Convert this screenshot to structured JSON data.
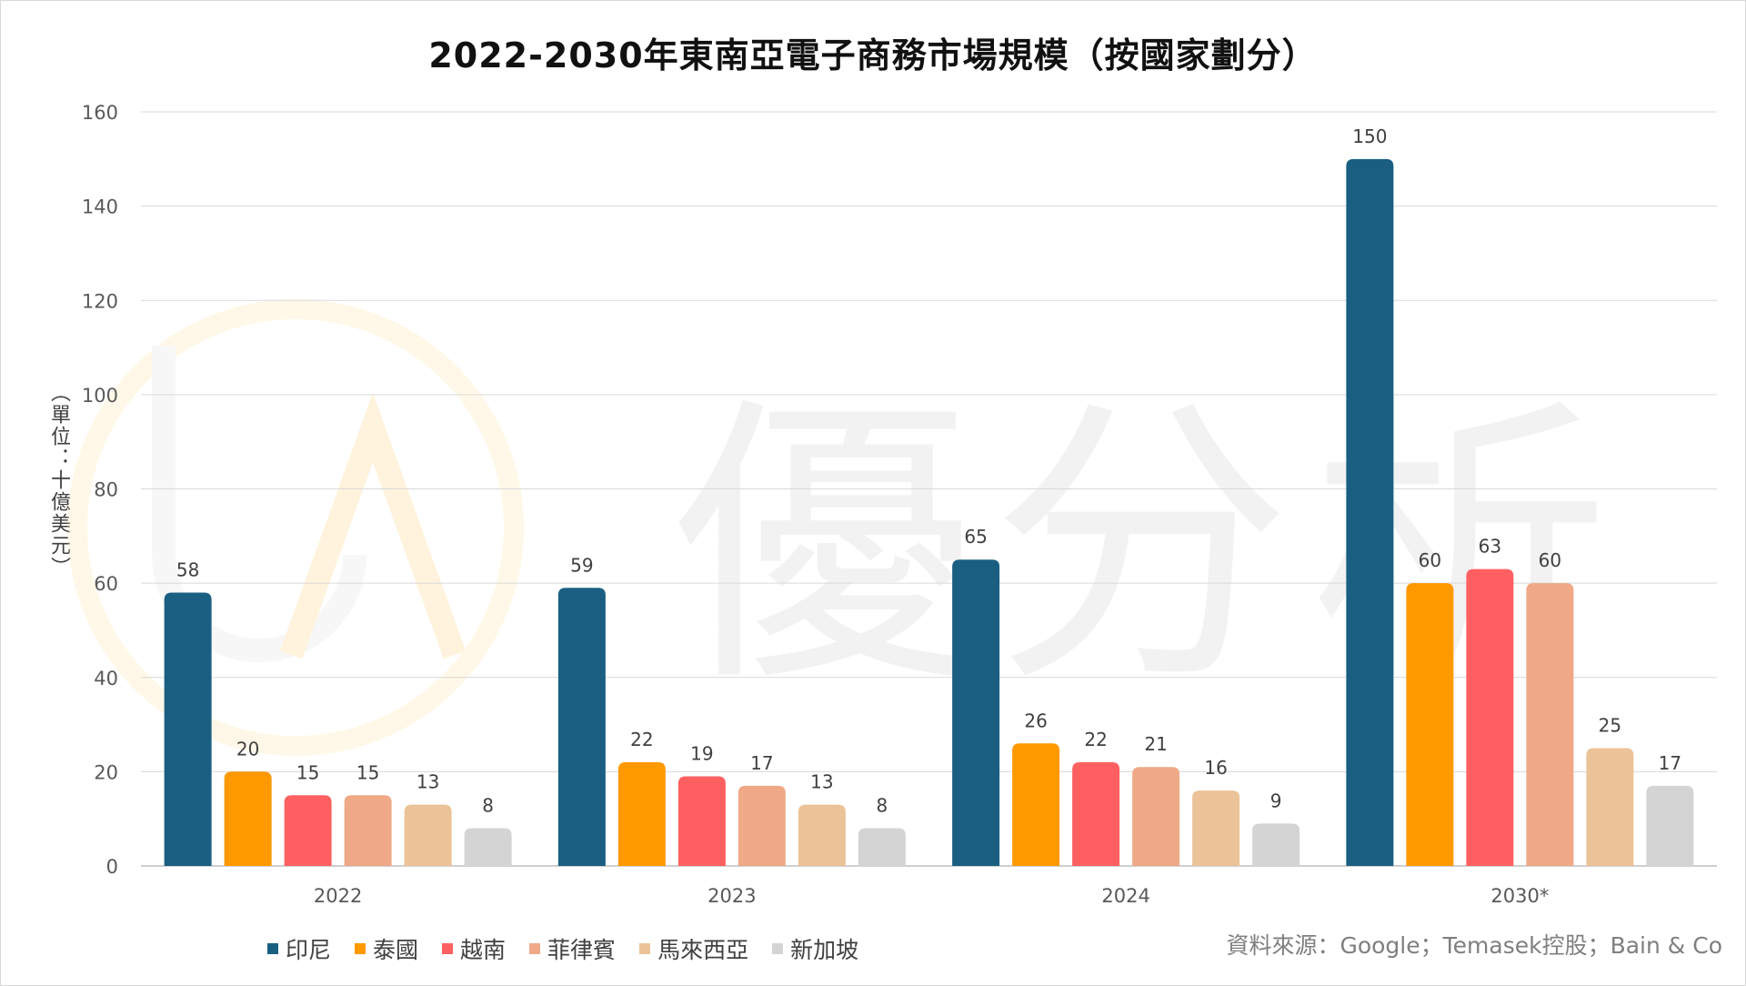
{
  "chart_data": {
    "type": "bar",
    "title": "2022-2030年東南亞電子商務市場規模（按國家劃分）",
    "ylabel": "（單位：十億美元）",
    "xlabel": "",
    "ylim": [
      0,
      160
    ],
    "yticks": [
      0,
      20,
      40,
      60,
      80,
      100,
      120,
      140,
      160
    ],
    "grid": true,
    "legend_position": "bottom-left",
    "categories": [
      "2022",
      "2023",
      "2024",
      "2030*"
    ],
    "series": [
      {
        "name": "印尼",
        "color": "#1a5f82",
        "values": [
          58,
          59,
          65,
          150
        ]
      },
      {
        "name": "泰國",
        "color": "#ff9900",
        "values": [
          20,
          22,
          26,
          60
        ]
      },
      {
        "name": "越南",
        "color": "#fe6061",
        "values": [
          15,
          19,
          22,
          63
        ]
      },
      {
        "name": "菲律賓",
        "color": "#efa987",
        "values": [
          15,
          17,
          21,
          60
        ]
      },
      {
        "name": "馬來西亞",
        "color": "#ecc398",
        "values": [
          13,
          13,
          16,
          25
        ]
      },
      {
        "name": "新加坡",
        "color": "#d4d4d4",
        "values": [
          8,
          8,
          9,
          17
        ]
      }
    ]
  },
  "source_note": "資料來源：Google；Temasek控股；Bain & Co",
  "watermark": {
    "text": "優分析",
    "logo_text": "UA"
  }
}
